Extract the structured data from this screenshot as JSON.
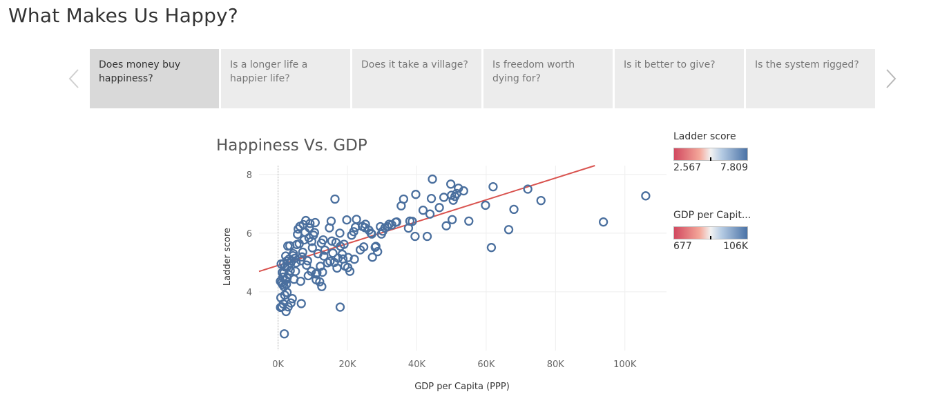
{
  "page": {
    "title": "What Makes Us Happy?"
  },
  "story": {
    "tabs": [
      {
        "label": "Does money buy happiness?",
        "active": true
      },
      {
        "label": "Is a longer life a happier life?",
        "active": false
      },
      {
        "label": "Does it take a village?",
        "active": false
      },
      {
        "label": "Is freedom worth dying for?",
        "active": false
      },
      {
        "label": "Is it better to give?",
        "active": false
      },
      {
        "label": "Is the system rigged?",
        "active": false
      }
    ],
    "prev_icon": "chevron-left-icon",
    "next_icon": "chevron-right-icon"
  },
  "legend": {
    "ladder": {
      "title": "Ladder score",
      "min": "2.567",
      "max": "7.809"
    },
    "gdp": {
      "title": "GDP per Capit...",
      "min": "677",
      "max": "106K"
    },
    "colors": {
      "low": "#d1485f",
      "mid": "#f2f2f2",
      "high": "#4a72a6"
    }
  },
  "chart_data": {
    "type": "scatter",
    "title": "Happiness Vs. GDP",
    "xlabel": "GDP per Capita (PPP)",
    "ylabel": "Ladder score",
    "xlim": [
      -5500,
      112000
    ],
    "ylim": [
      2.0,
      8.3
    ],
    "x_ticks": [
      "0K",
      "20K",
      "40K",
      "60K",
      "80K",
      "100K"
    ],
    "x_tick_values": [
      0,
      20000,
      40000,
      60000,
      80000,
      100000
    ],
    "y_ticks": [
      "4",
      "6",
      "8"
    ],
    "y_tick_values": [
      4,
      6,
      8
    ],
    "grid": true,
    "marker_color": "#4a6f9e",
    "trend_color": "#d9534f",
    "trend": {
      "intercept": 4.9,
      "slope": 3.722e-05
    },
    "points": [
      [
        106000,
        7.27
      ],
      [
        93800,
        6.38
      ],
      [
        75800,
        7.11
      ],
      [
        72000,
        7.5
      ],
      [
        68000,
        6.81
      ],
      [
        66500,
        6.12
      ],
      [
        62000,
        7.58
      ],
      [
        61500,
        5.51
      ],
      [
        59800,
        6.95
      ],
      [
        55000,
        6.41
      ],
      [
        53500,
        7.44
      ],
      [
        52000,
        7.53
      ],
      [
        51500,
        7.35
      ],
      [
        51000,
        7.25
      ],
      [
        50500,
        7.12
      ],
      [
        50000,
        7.29
      ],
      [
        49800,
        7.67
      ],
      [
        50200,
        6.46
      ],
      [
        48500,
        6.25
      ],
      [
        47800,
        7.22
      ],
      [
        46500,
        6.87
      ],
      [
        44500,
        7.84
      ],
      [
        44200,
        7.18
      ],
      [
        43800,
        6.65
      ],
      [
        43000,
        5.89
      ],
      [
        41800,
        6.78
      ],
      [
        39700,
        7.32
      ],
      [
        39500,
        5.89
      ],
      [
        38000,
        6.41
      ],
      [
        37600,
        6.17
      ],
      [
        36200,
        7.16
      ],
      [
        35500,
        6.93
      ],
      [
        34200,
        6.38
      ],
      [
        32800,
        6.28
      ],
      [
        32000,
        6.3
      ],
      [
        31500,
        6.22
      ],
      [
        30800,
        6.18
      ],
      [
        30200,
        6.07
      ],
      [
        29800,
        5.97
      ],
      [
        29500,
        6.22
      ],
      [
        28700,
        5.37
      ],
      [
        28200,
        5.55
      ],
      [
        28000,
        5.52
      ],
      [
        27200,
        5.18
      ],
      [
        26800,
        6.0
      ],
      [
        26200,
        6.1
      ],
      [
        25200,
        6.3
      ],
      [
        25000,
        6.19
      ],
      [
        24700,
        5.53
      ],
      [
        24300,
        6.23
      ],
      [
        22600,
        6.47
      ],
      [
        22300,
        6.2
      ],
      [
        22000,
        5.11
      ],
      [
        21800,
        6.05
      ],
      [
        20700,
        4.7
      ],
      [
        20200,
        5.17
      ],
      [
        20100,
        4.83
      ],
      [
        19800,
        6.45
      ],
      [
        19300,
        4.88
      ],
      [
        19000,
        5.62
      ],
      [
        18500,
        5.28
      ],
      [
        18000,
        5.55
      ],
      [
        17800,
        6.0
      ],
      [
        17900,
        3.48
      ],
      [
        17300,
        5.15
      ],
      [
        17000,
        4.81
      ],
      [
        16700,
        5.68
      ],
      [
        16400,
        7.16
      ],
      [
        15800,
        5.32
      ],
      [
        15500,
        5.73
      ],
      [
        15300,
        6.41
      ],
      [
        15000,
        5.04
      ],
      [
        14800,
        6.18
      ],
      [
        13500,
        5.42
      ],
      [
        13200,
        5.22
      ],
      [
        13000,
        5.77
      ],
      [
        12800,
        4.67
      ],
      [
        12600,
        4.18
      ],
      [
        12500,
        5.66
      ],
      [
        12200,
        4.87
      ],
      [
        12000,
        4.34
      ],
      [
        11500,
        5.3
      ],
      [
        11200,
        4.65
      ],
      [
        11000,
        4.41
      ],
      [
        10700,
        6.36
      ],
      [
        10500,
        6.02
      ],
      [
        10200,
        5.93
      ],
      [
        9900,
        5.5
      ],
      [
        9700,
        5.72
      ],
      [
        9600,
        4.7
      ],
      [
        9200,
        6.33
      ],
      [
        9000,
        6.18
      ],
      [
        8700,
        4.55
      ],
      [
        8500,
        5.06
      ],
      [
        8200,
        4.91
      ],
      [
        8000,
        6.43
      ],
      [
        7800,
        6.03
      ],
      [
        7500,
        5.77
      ],
      [
        7300,
        6.29
      ],
      [
        7100,
        5.35
      ],
      [
        6900,
        5.19
      ],
      [
        6700,
        3.6
      ],
      [
        6500,
        4.36
      ],
      [
        6300,
        6.23
      ],
      [
        6100,
        5.64
      ],
      [
        5800,
        6.14
      ],
      [
        5600,
        5.96
      ],
      [
        5400,
        5.61
      ],
      [
        5200,
        4.99
      ],
      [
        5000,
        4.7
      ],
      [
        4800,
        5.14
      ],
      [
        4600,
        4.43
      ],
      [
        4300,
        5.23
      ],
      [
        4100,
        3.77
      ],
      [
        3900,
        5.06
      ],
      [
        3700,
        3.62
      ],
      [
        3500,
        4.72
      ],
      [
        3400,
        5.57
      ],
      [
        3200,
        5.12
      ],
      [
        3000,
        4.59
      ],
      [
        2900,
        3.49
      ],
      [
        2800,
        5.56
      ],
      [
        2700,
        4.87
      ],
      [
        2600,
        4.47
      ],
      [
        2500,
        5.05
      ],
      [
        2400,
        4.26
      ],
      [
        2300,
        3.33
      ],
      [
        2200,
        5.22
      ],
      [
        2100,
        4.4
      ],
      [
        2000,
        4.85
      ],
      [
        1900,
        3.89
      ],
      [
        1800,
        2.57
      ],
      [
        1700,
        4.65
      ],
      [
        1600,
        4.96
      ],
      [
        1500,
        3.59
      ],
      [
        1400,
        4.5
      ],
      [
        1300,
        4.25
      ],
      [
        1200,
        4.66
      ],
      [
        1100,
        3.49
      ],
      [
        1000,
        4.31
      ],
      [
        900,
        4.95
      ],
      [
        800,
        3.8
      ],
      [
        700,
        3.47
      ],
      [
        677,
        4.36
      ],
      [
        2600,
        3.98
      ],
      [
        3600,
        4.98
      ],
      [
        4400,
        5.3
      ],
      [
        6600,
        5.06
      ],
      [
        8900,
        5.84
      ],
      [
        10900,
        4.61
      ],
      [
        14300,
        4.99
      ],
      [
        16200,
        5.0
      ],
      [
        18700,
        5.12
      ],
      [
        21200,
        5.93
      ],
      [
        23700,
        5.43
      ],
      [
        33900,
        6.37
      ],
      [
        38700,
        6.4
      ],
      [
        27000,
        5.97
      ],
      [
        1700,
        4.18
      ]
    ]
  }
}
